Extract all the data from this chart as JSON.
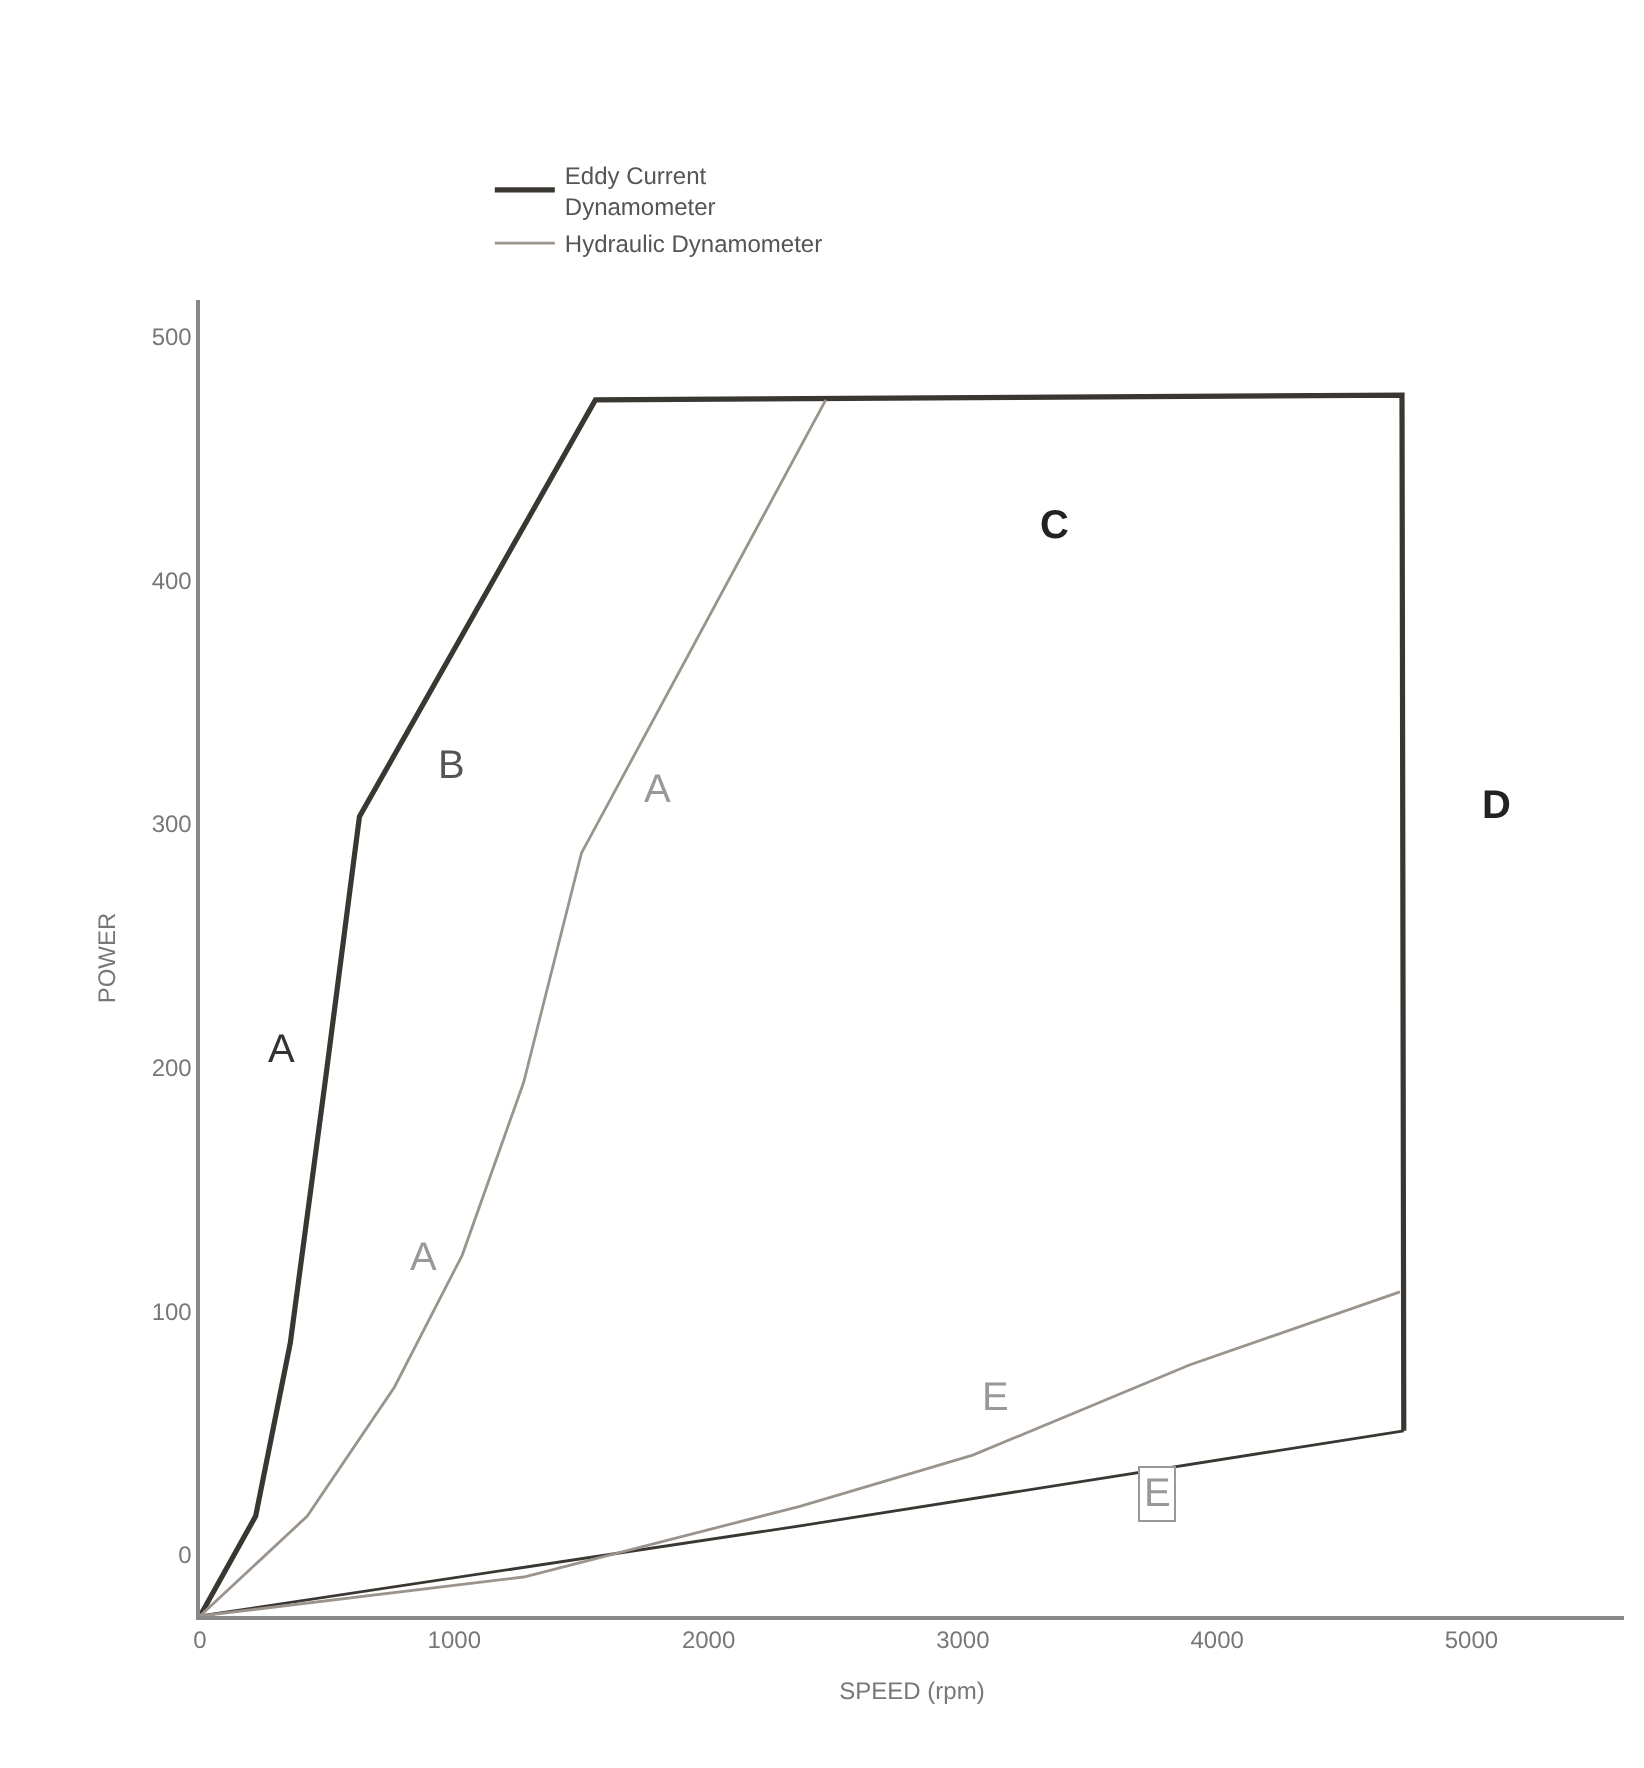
{
  "chart_data": {
    "type": "line",
    "xlabel": "SPEED (rpm)",
    "ylabel": "POWER",
    "xlim": [
      0,
      5600
    ],
    "ylim": [
      -25,
      515
    ],
    "xticks": [
      0,
      1000,
      2000,
      3000,
      4000,
      5000
    ],
    "yticks": [
      0,
      100,
      200,
      300,
      400,
      500
    ],
    "legend": "top",
    "marker": "none",
    "line_style": "solid",
    "series": [
      {
        "name": "Eddy Current\nDynamometer",
        "color": "#3a3632",
        "x": [
          0,
          219,
          355,
          492,
          627,
          1555,
          4727,
          4734
        ],
        "values": [
          -25,
          16,
          87,
          194,
          303,
          474,
          476,
          51
        ]
      },
      {
        "color": "#3a3632",
        "x": [
          0,
          2360,
          4734
        ],
        "values": [
          -25,
          12,
          51
        ]
      },
      {
        "name": "Hydraulic Dynamometer",
        "color": "#9a948c",
        "x": [
          0,
          422,
          765,
          1031,
          1273,
          1500,
          2461
        ],
        "values": [
          -25,
          16,
          69,
          123,
          194,
          288,
          474
        ]
      },
      {
        "color": "#9a948c",
        "x": [
          0,
          1273,
          2359,
          3039,
          3891,
          4719
        ],
        "values": [
          -25,
          -9,
          20,
          41,
          78,
          108
        ]
      }
    ],
    "annotations": [
      "A",
      "B",
      "A",
      "A",
      "C",
      "D",
      "E",
      "E"
    ]
  }
}
